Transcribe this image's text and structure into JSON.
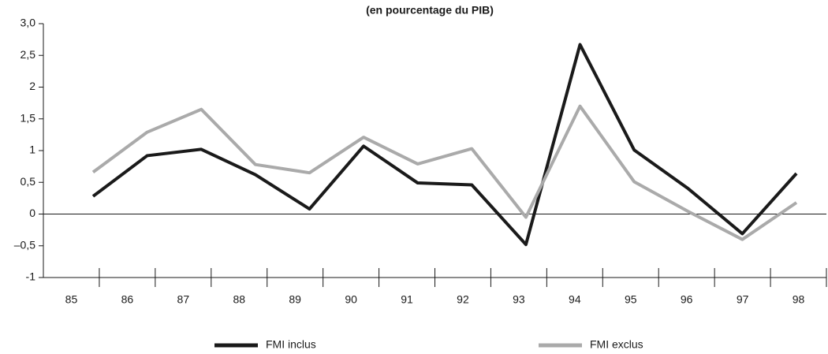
{
  "chart_data": {
    "type": "line",
    "title": "(en pourcentage du PIB)",
    "categories": [
      "85",
      "86",
      "87",
      "88",
      "89",
      "90",
      "91",
      "92",
      "93",
      "94",
      "95",
      "96",
      "97",
      "98"
    ],
    "series": [
      {
        "name": "FMI inclus",
        "color": "#1a1a1a",
        "values": [
          0.28,
          0.92,
          1.02,
          0.62,
          0.08,
          1.07,
          0.49,
          0.46,
          -0.48,
          2.67,
          1.01,
          0.4,
          -0.31,
          0.64
        ]
      },
      {
        "name": "FMI exclus",
        "color": "#aaaaaa",
        "values": [
          0.66,
          1.29,
          1.65,
          0.78,
          0.65,
          1.21,
          0.79,
          1.03,
          -0.05,
          1.7,
          0.51,
          0.04,
          -0.4,
          0.18
        ]
      }
    ],
    "ylim": [
      -1,
      3
    ],
    "yticks": [
      -1,
      {
        "value": -0.5,
        "label": "–0,5"
      },
      0,
      {
        "value": 0.5,
        "label": "0,5"
      },
      1,
      {
        "value": 1.5,
        "label": "1,5"
      },
      2,
      {
        "value": 2.5,
        "label": "2,5"
      },
      {
        "value": 3,
        "label": "3,0"
      }
    ],
    "legend": "bottom"
  }
}
